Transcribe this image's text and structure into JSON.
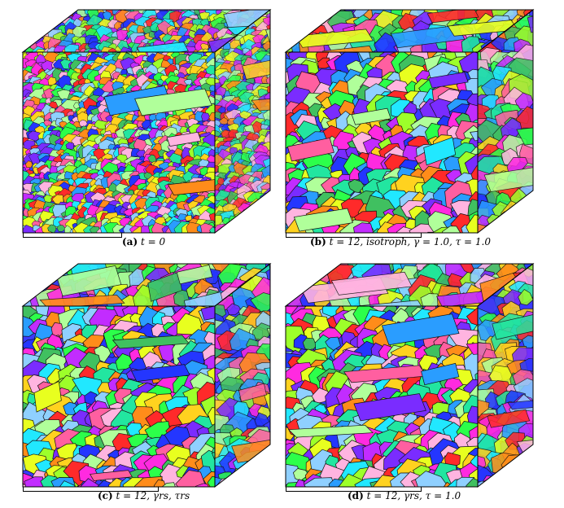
{
  "figure": {
    "panels": [
      {
        "id": "a",
        "label": "(a)",
        "text": "t = 0",
        "fine": true
      },
      {
        "id": "b",
        "label": "(b)",
        "text": "t = 12, isotroph, γ = 1.0, τ = 1.0",
        "fine": false
      },
      {
        "id": "c",
        "label": "(c)",
        "text": "t = 12, γrs, τrs",
        "fine": false
      },
      {
        "id": "d",
        "label": "(d)",
        "text": "t = 12, γrs, τ = 1.0",
        "fine": false
      }
    ],
    "palette": [
      "#ff2a2a",
      "#ff8c1a",
      "#ffd21f",
      "#e8ff1f",
      "#9dff2a",
      "#2cff4a",
      "#22e6a0",
      "#21e8ff",
      "#2a9dff",
      "#2436ff",
      "#7a2cff",
      "#c22cff",
      "#ff2ae0",
      "#ff5fa0",
      "#8fd0ff",
      "#b0ff9a",
      "#ffb4e0",
      "#40c060"
    ]
  }
}
